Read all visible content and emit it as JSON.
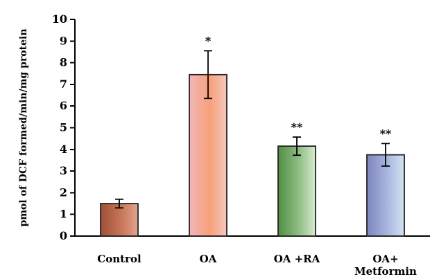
{
  "chart_data": {
    "type": "bar",
    "categories": [
      [
        "Control"
      ],
      [
        "OA"
      ],
      [
        "OA +RA"
      ],
      [
        "OA+",
        "Metformin"
      ]
    ],
    "values": [
      1.5,
      7.45,
      4.15,
      3.75
    ],
    "errors": [
      0.2,
      1.1,
      0.42,
      0.52
    ],
    "annotations": [
      "",
      "*",
      "**",
      "**"
    ],
    "ylabel": "pmol of DCF formed/min/mg  protein",
    "yticks": [
      0,
      1,
      2,
      3,
      4,
      5,
      6,
      7,
      8,
      9,
      10
    ],
    "ylim": [
      0,
      10
    ],
    "bar_colors": [
      [
        "#9f4f38",
        "#c77658",
        "#e3a48d"
      ],
      [
        "#f2b6b8",
        "#f7a17a",
        "#f5c8be"
      ],
      [
        "#4e8f43",
        "#8fbc83",
        "#d7ead0"
      ],
      [
        "#7f86bd",
        "#a8b6df",
        "#d4e3f4"
      ]
    ]
  }
}
